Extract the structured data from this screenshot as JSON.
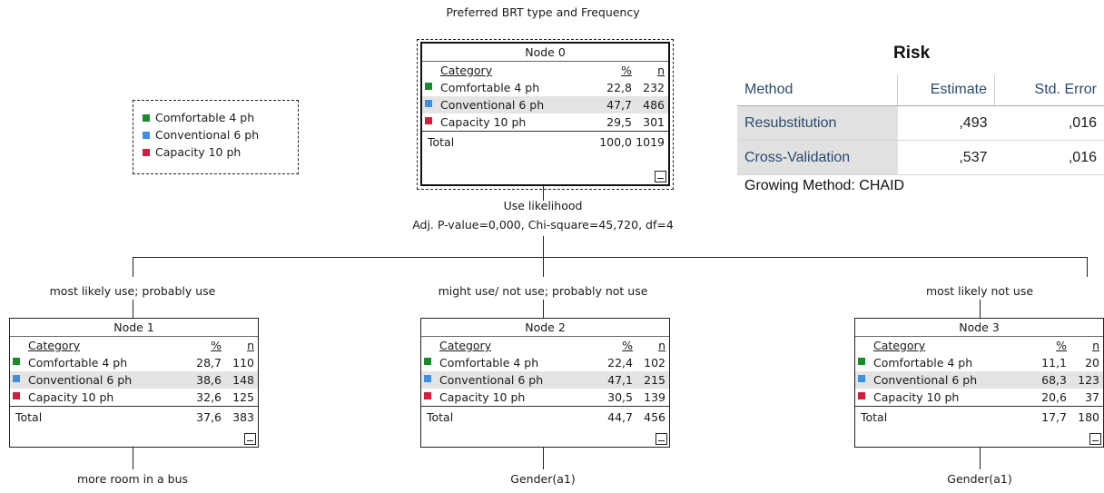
{
  "tree_title": "Preferred BRT type and Frequency",
  "legend": [
    {
      "label": "Comfortable 4 ph",
      "color": "#1a8a2a"
    },
    {
      "label": "Conventional 6 ph",
      "color": "#3d8fe0"
    },
    {
      "label": "Capacity 10 ph",
      "color": "#d41c3c"
    }
  ],
  "column_headers": {
    "category": "Category",
    "percent": "%",
    "n": "n"
  },
  "nodes": [
    {
      "title": "Node 0",
      "rows": [
        {
          "category": "Comfortable 4 ph",
          "percent": "22,8",
          "n": "232"
        },
        {
          "category": "Conventional 6 ph",
          "percent": "47,7",
          "n": "486"
        },
        {
          "category": "Capacity 10 ph",
          "percent": "29,5",
          "n": "301"
        }
      ],
      "total": {
        "label": "Total",
        "percent": "100,0",
        "n": "1019"
      }
    },
    {
      "title": "Node 1",
      "rows": [
        {
          "category": "Comfortable 4 ph",
          "percent": "28,7",
          "n": "110"
        },
        {
          "category": "Conventional 6 ph",
          "percent": "38,6",
          "n": "148"
        },
        {
          "category": "Capacity 10 ph",
          "percent": "32,6",
          "n": "125"
        }
      ],
      "total": {
        "label": "Total",
        "percent": "37,6",
        "n": "383"
      }
    },
    {
      "title": "Node 2",
      "rows": [
        {
          "category": "Comfortable 4 ph",
          "percent": "22,4",
          "n": "102"
        },
        {
          "category": "Conventional 6 ph",
          "percent": "47,1",
          "n": "215"
        },
        {
          "category": "Capacity 10 ph",
          "percent": "30,5",
          "n": "139"
        }
      ],
      "total": {
        "label": "Total",
        "percent": "44,7",
        "n": "456"
      }
    },
    {
      "title": "Node 3",
      "rows": [
        {
          "category": "Comfortable 4 ph",
          "percent": "11,1",
          "n": "20"
        },
        {
          "category": "Conventional 6 ph",
          "percent": "68,3",
          "n": "123"
        },
        {
          "category": "Capacity 10 ph",
          "percent": "20,6",
          "n": "37"
        }
      ],
      "total": {
        "label": "Total",
        "percent": "17,7",
        "n": "180"
      }
    }
  ],
  "split": {
    "variable": "Use likelihood",
    "stats": "Adj. P-value=0,000, Chi-square=45,720, df=4"
  },
  "branches": [
    "most likely use; probably use",
    "might use/ not use; probably not use",
    "most likely not use"
  ],
  "next_splits": [
    "more room in a bus",
    "Gender(a1)",
    "Gender(a1)"
  ],
  "risk": {
    "title": "Risk",
    "headers": [
      "Method",
      "Estimate",
      "Std. Error"
    ],
    "rows": [
      {
        "method": "Resubstitution",
        "estimate": ",493",
        "std_error": ",016"
      },
      {
        "method": "Cross-Validation",
        "estimate": ",537",
        "std_error": ",016"
      }
    ],
    "footnote": "Growing Method: CHAID"
  }
}
